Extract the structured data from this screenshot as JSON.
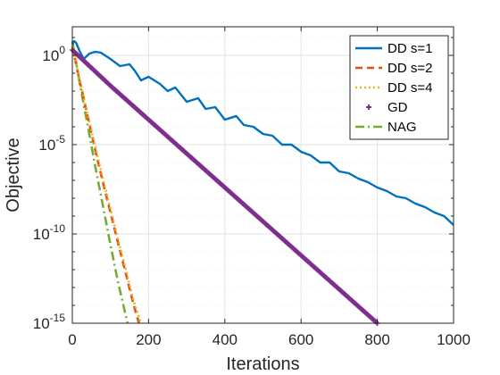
{
  "chart_data": {
    "type": "line",
    "xlabel": "Iterations",
    "ylabel": "Objective",
    "xlim": [
      0,
      1000
    ],
    "ylim_log10": [
      -15,
      1.6
    ],
    "yscale": "log",
    "grid": true,
    "legend_position": "top-right",
    "x_ticks": [
      {
        "value": 0,
        "label": "0"
      },
      {
        "value": 200,
        "label": "200"
      },
      {
        "value": 400,
        "label": "400"
      },
      {
        "value": 600,
        "label": "600"
      },
      {
        "value": 800,
        "label": "800"
      },
      {
        "value": 1000,
        "label": "1000"
      }
    ],
    "y_ticks": [
      {
        "exponent": 0,
        "base": "10",
        "exp": "0"
      },
      {
        "exponent": -5,
        "base": "10",
        "exp": "-5"
      },
      {
        "exponent": -10,
        "base": "10",
        "exp": "-10"
      },
      {
        "exponent": -15,
        "base": "10",
        "exp": "-15"
      }
    ],
    "series": [
      {
        "name": "DD s=1",
        "color": "#0072BD",
        "style": "solid",
        "x": [
          0,
          5,
          10,
          20,
          30,
          45,
          60,
          75,
          100,
          125,
          150,
          165,
          180,
          200,
          230,
          250,
          270,
          300,
          330,
          350,
          375,
          400,
          430,
          450,
          475,
          500,
          525,
          550,
          575,
          600,
          625,
          650,
          675,
          700,
          725,
          750,
          775,
          800,
          825,
          850,
          875,
          900,
          925,
          950,
          975,
          1000
        ],
        "y_log10": [
          0.6,
          0.8,
          0.7,
          0.2,
          -0.2,
          0.1,
          0.2,
          0.15,
          -0.2,
          -0.6,
          -0.5,
          -0.9,
          -1.4,
          -1.2,
          -1.6,
          -2.0,
          -1.8,
          -2.6,
          -2.4,
          -3.0,
          -2.9,
          -3.6,
          -3.4,
          -3.9,
          -4.0,
          -4.4,
          -4.5,
          -5.0,
          -5.0,
          -5.4,
          -5.6,
          -6.0,
          -6.0,
          -6.5,
          -6.6,
          -6.9,
          -7.1,
          -7.4,
          -7.6,
          -7.9,
          -8.0,
          -8.3,
          -8.5,
          -8.8,
          -9.0,
          -9.5
        ]
      },
      {
        "name": "DD s=2",
        "color": "#D95319",
        "style": "dashed",
        "x": [
          0,
          20,
          40,
          60,
          80,
          100,
          120,
          140,
          160,
          175
        ],
        "y_log10": [
          0.5,
          -1.5,
          -3.4,
          -5.3,
          -7.1,
          -8.8,
          -10.5,
          -12.2,
          -13.9,
          -15.0
        ]
      },
      {
        "name": "DD s=4",
        "color": "#EDB120",
        "style": "dotted",
        "x": [
          0,
          20,
          40,
          60,
          80,
          100,
          120,
          140,
          160,
          180
        ],
        "y_log10": [
          0.5,
          -1.4,
          -3.3,
          -5.1,
          -6.9,
          -8.6,
          -10.3,
          -12.0,
          -13.7,
          -15.0
        ]
      },
      {
        "name": "GD",
        "color": "#7E2F8E",
        "style": "markers",
        "x": [
          0,
          100,
          200,
          300,
          400,
          500,
          600,
          700,
          800
        ],
        "y_log10": [
          0.3,
          -1.7,
          -3.6,
          -5.5,
          -7.4,
          -9.3,
          -11.2,
          -13.1,
          -15.0
        ]
      },
      {
        "name": "NAG",
        "color": "#77AC30",
        "style": "dashdot",
        "x": [
          0,
          20,
          40,
          60,
          80,
          100,
          120,
          145
        ],
        "y_log10": [
          0.8,
          -1.6,
          -3.9,
          -6.2,
          -8.4,
          -10.6,
          -12.7,
          -15.0
        ]
      }
    ]
  }
}
